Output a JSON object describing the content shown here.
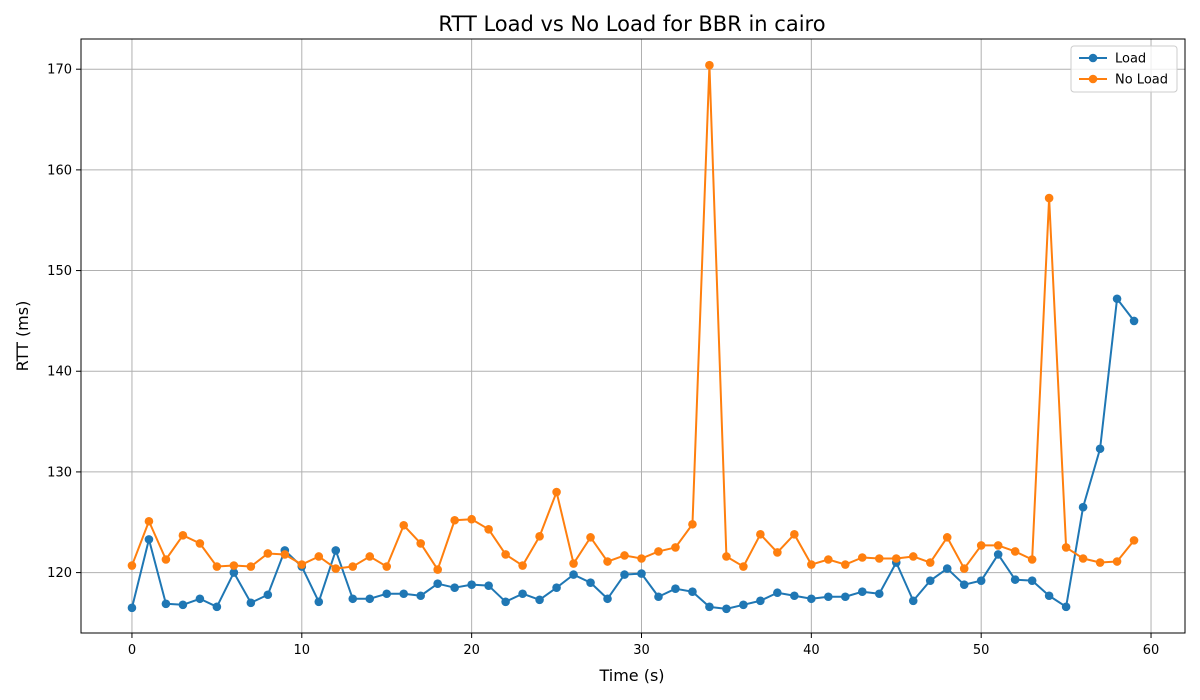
{
  "chart_data": {
    "type": "line",
    "title": "RTT Load vs No Load for BBR in cairo",
    "xlabel": "Time (s)",
    "ylabel": "RTT (ms)",
    "xlim": [
      -3,
      62
    ],
    "ylim": [
      114,
      173
    ],
    "xticks": [
      0,
      10,
      20,
      30,
      40,
      50,
      60
    ],
    "yticks": [
      120,
      130,
      140,
      150,
      160,
      170
    ],
    "grid": true,
    "legend": "top-right",
    "x": [
      0,
      1,
      2,
      3,
      4,
      5,
      6,
      7,
      8,
      9,
      10,
      11,
      12,
      13,
      14,
      15,
      16,
      17,
      18,
      19,
      20,
      21,
      22,
      23,
      24,
      25,
      26,
      27,
      28,
      29,
      30,
      31,
      32,
      33,
      34,
      35,
      36,
      37,
      38,
      39,
      40,
      41,
      42,
      43,
      44,
      45,
      46,
      47,
      48,
      49,
      50,
      51,
      52,
      53,
      54,
      55,
      56,
      57,
      58,
      59
    ],
    "series": [
      {
        "name": "Load",
        "color": "#1f77b4",
        "values": [
          116.5,
          123.3,
          116.9,
          116.8,
          117.4,
          116.6,
          120.0,
          117.0,
          117.8,
          122.2,
          120.6,
          117.1,
          122.2,
          117.4,
          117.4,
          117.9,
          117.9,
          117.7,
          118.9,
          118.5,
          118.8,
          118.7,
          117.1,
          117.9,
          117.3,
          118.5,
          119.8,
          119.0,
          117.4,
          119.8,
          119.9,
          117.6,
          118.4,
          118.1,
          116.6,
          116.4,
          116.8,
          117.2,
          118.0,
          117.7,
          117.4,
          117.6,
          117.6,
          118.1,
          117.9,
          121.0,
          117.2,
          119.2,
          120.4,
          118.8,
          119.2,
          121.8,
          119.3,
          119.2,
          117.7,
          116.6,
          126.5,
          132.3,
          147.2,
          145.0
        ]
      },
      {
        "name": "No Load",
        "color": "#ff7f0e",
        "values": [
          120.7,
          125.1,
          121.3,
          123.7,
          122.9,
          120.6,
          120.7,
          120.6,
          121.9,
          121.8,
          120.8,
          121.6,
          120.4,
          120.6,
          121.6,
          120.6,
          124.7,
          122.9,
          120.3,
          125.2,
          125.3,
          124.3,
          121.8,
          120.7,
          123.6,
          128.0,
          120.9,
          123.5,
          121.1,
          121.7,
          121.4,
          122.1,
          122.5,
          124.8,
          170.4,
          121.6,
          120.6,
          123.8,
          122.0,
          123.8,
          120.8,
          121.3,
          120.8,
          121.5,
          121.4,
          121.4,
          121.6,
          121.0,
          123.5,
          120.4,
          122.7,
          122.7,
          122.1,
          121.3,
          157.2,
          122.5,
          121.4,
          121.0,
          121.1,
          123.2
        ]
      }
    ]
  }
}
